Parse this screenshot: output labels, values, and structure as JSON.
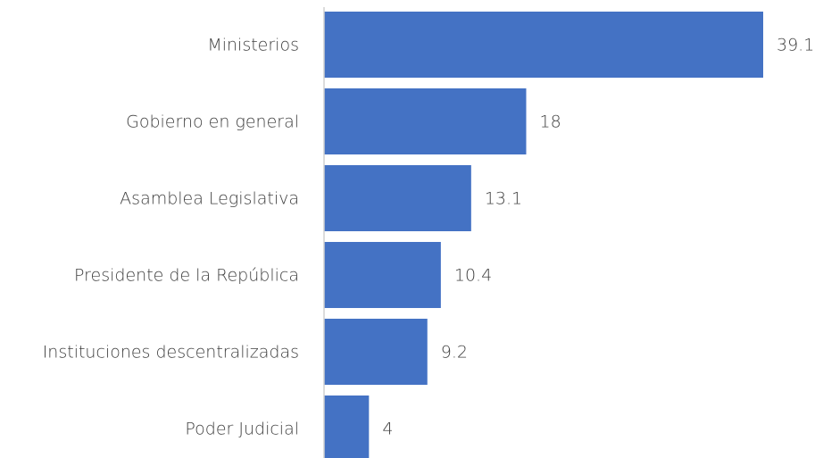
{
  "chart_data": {
    "type": "bar",
    "orientation": "horizontal",
    "categories": [
      "Ministerios",
      "Gobierno en general",
      "Asamblea Legislativa",
      "Presidente de la República",
      "Instituciones descentralizadas",
      "Poder Judicial"
    ],
    "values": [
      39.1,
      18,
      13.1,
      10.4,
      9.2,
      4
    ],
    "color": "#4472c4"
  }
}
